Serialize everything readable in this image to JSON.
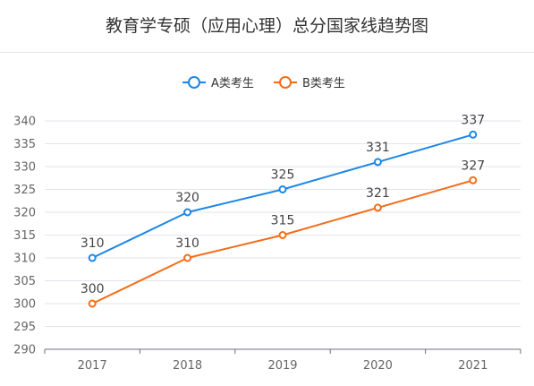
{
  "title": "教育学专硕（应用心理）总分国家线趋势图",
  "chart_data": {
    "type": "line",
    "title": "教育学专硕（应用心理）总分国家线趋势图",
    "categories": [
      "2017",
      "2018",
      "2019",
      "2020",
      "2021"
    ],
    "series": [
      {
        "name": "A类考生",
        "color": "#1b87e6",
        "values": [
          310,
          320,
          325,
          331,
          337
        ]
      },
      {
        "name": "B类考生",
        "color": "#f26d17",
        "values": [
          300,
          310,
          315,
          321,
          327
        ]
      }
    ],
    "y_ticks": [
      290,
      295,
      300,
      305,
      310,
      315,
      320,
      325,
      330,
      335,
      340
    ],
    "ylim": [
      290,
      340
    ],
    "grid": true,
    "legend": "top-center",
    "data_labels": true
  }
}
